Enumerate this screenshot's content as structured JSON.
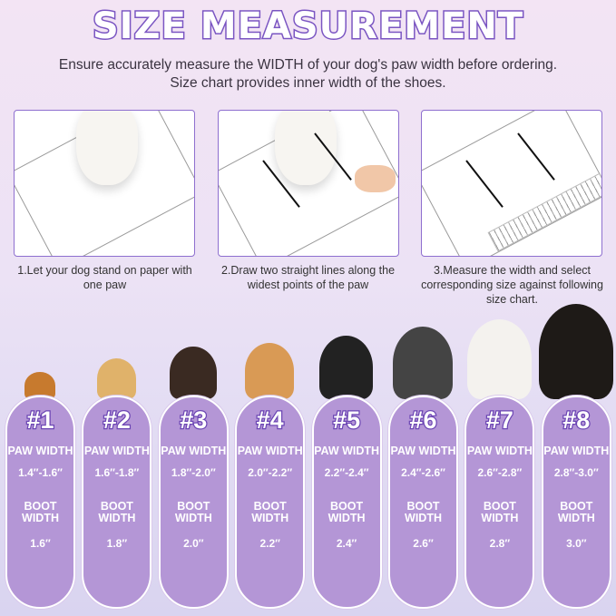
{
  "title": "SIZE MEASUREMENT",
  "subtitle_line1": "Ensure accurately measure the WIDTH of your dog's paw width before ordering.",
  "subtitle_line2": "Size chart provides inner width of the shoes.",
  "steps": [
    {
      "caption": "1.Let your dog stand on paper with one paw"
    },
    {
      "caption": "2.Draw two straight lines along the widest points of the paw"
    },
    {
      "caption": "3.Measure the width and select corresponding size against following size chart."
    }
  ],
  "sizes": [
    {
      "num": "#1",
      "paw_label": "PAW WIDTH",
      "paw": "1.4″-1.6″",
      "boot_label": "BOOT WIDTH",
      "boot": "1.6″",
      "dog_color": "#c77a2e"
    },
    {
      "num": "#2",
      "paw_label": "PAW WIDTH",
      "paw": "1.6″-1.8″",
      "boot_label": "BOOT WIDTH",
      "boot": "1.8″",
      "dog_color": "#e0b26a"
    },
    {
      "num": "#3",
      "paw_label": "PAW WIDTH",
      "paw": "1.8″-2.0″",
      "boot_label": "BOOT WIDTH",
      "boot": "2.0″",
      "dog_color": "#3a2a22"
    },
    {
      "num": "#4",
      "paw_label": "PAW WIDTH",
      "paw": "2.0″-2.2″",
      "boot_label": "BOOT WIDTH",
      "boot": "2.2″",
      "dog_color": "#d99a55"
    },
    {
      "num": "#5",
      "paw_label": "PAW WIDTH",
      "paw": "2.2″-2.4″",
      "boot_label": "BOOT WIDTH",
      "boot": "2.4″",
      "dog_color": "#222"
    },
    {
      "num": "#6",
      "paw_label": "PAW WIDTH",
      "paw": "2.4″-2.6″",
      "boot_label": "BOOT WIDTH",
      "boot": "2.6″",
      "dog_color": "#444"
    },
    {
      "num": "#7",
      "paw_label": "PAW WIDTH",
      "paw": "2.6″-2.8″",
      "boot_label": "BOOT WIDTH",
      "boot": "2.8″",
      "dog_color": "#f4f2ee"
    },
    {
      "num": "#8",
      "paw_label": "PAW WIDTH",
      "paw": "2.8″-3.0″",
      "boot_label": "BOOT WIDTH",
      "boot": "3.0″",
      "dog_color": "#1e1a17"
    }
  ]
}
